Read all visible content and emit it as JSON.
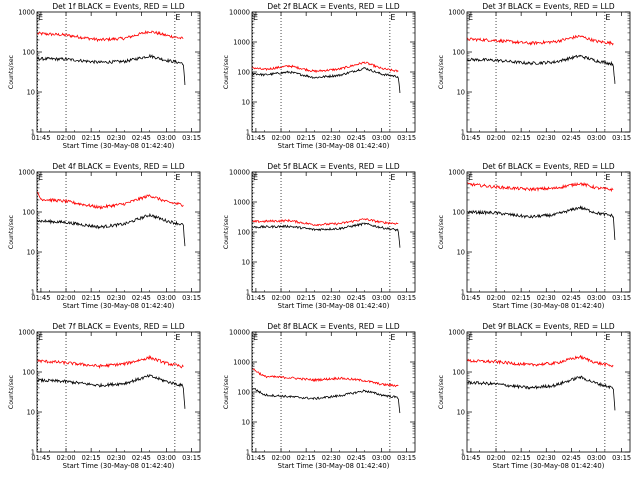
{
  "colors": {
    "events": "#000000",
    "lld": "#ff0000",
    "background": "#ffffff"
  },
  "chart_data": [
    {
      "type": "line",
      "title": "Det 1f BLACK = Events, RED = LLD",
      "xlabel": "Start Time (30-May-08 01:42:40)",
      "ylabel": "Counts/sec",
      "y_scale": "log",
      "ylim": [
        1,
        1000
      ],
      "xlim": [
        "01:42:40",
        "03:20:00"
      ],
      "x_ticks": [
        "01:45",
        "02:00",
        "02:15",
        "02:30",
        "02:45",
        "03:00",
        "03:15"
      ],
      "y_ticks": [
        "1",
        "10",
        "100",
        "1000"
      ],
      "vlines": [
        "01:43:00",
        "02:00:00",
        "03:05:00"
      ],
      "markers": [
        {
          "label": "E",
          "x": "01:43:00"
        },
        {
          "label": "E",
          "x": "03:05:00"
        }
      ],
      "series": [
        {
          "color": "#ff0000",
          "x": [
            "01:43",
            "02:00",
            "02:20",
            "02:35",
            "02:50",
            "03:00",
            "03:10"
          ],
          "values": [
            290,
            265,
            200,
            220,
            330,
            260,
            215
          ]
        },
        {
          "color": "#000000",
          "x": [
            "01:43",
            "02:00",
            "02:20",
            "02:35",
            "02:50",
            "03:00",
            "03:10",
            "03:11"
          ],
          "values": [
            68,
            66,
            55,
            58,
            80,
            62,
            52,
            15
          ]
        }
      ]
    },
    {
      "type": "line",
      "title": "Det 2f BLACK = Events, RED = LLD",
      "xlabel": "Start Time (30-May-08 01:42:40)",
      "ylabel": "Counts/sec",
      "y_scale": "log",
      "ylim": [
        1,
        10000
      ],
      "xlim": [
        "01:42:40",
        "03:20:00"
      ],
      "x_ticks": [
        "01:45",
        "02:00",
        "02:15",
        "02:30",
        "02:45",
        "03:00",
        "03:15"
      ],
      "y_ticks": [
        "1",
        "10",
        "100",
        "1000",
        "10000"
      ],
      "vlines": [
        "01:43:00",
        "02:00:00",
        "03:05:00"
      ],
      "markers": [
        {
          "label": "E",
          "x": "01:43:00"
        },
        {
          "label": "E",
          "x": "03:05:00"
        }
      ],
      "series": [
        {
          "color": "#ff0000",
          "x": [
            "01:43",
            "01:50",
            "02:05",
            "02:20",
            "02:35",
            "02:50",
            "03:00",
            "03:10"
          ],
          "values": [
            140,
            120,
            160,
            105,
            125,
            210,
            130,
            105
          ]
        },
        {
          "color": "#000000",
          "x": [
            "01:43",
            "01:50",
            "02:05",
            "02:20",
            "02:35",
            "02:50",
            "03:00",
            "03:10",
            "03:11"
          ],
          "values": [
            90,
            80,
            100,
            65,
            78,
            135,
            85,
            70,
            20
          ]
        }
      ]
    },
    {
      "type": "line",
      "title": "Det 3f BLACK = Events, RED = LLD",
      "xlabel": "",
      "ylabel": "Counts/sec",
      "y_scale": "log",
      "ylim": [
        1,
        1000
      ],
      "xlim": [
        "01:42:40",
        "03:20:00"
      ],
      "x_ticks": [
        "01:45",
        "02:00",
        "02:15",
        "02:30",
        "02:45",
        "03:00",
        "03:15"
      ],
      "y_ticks": [
        "1",
        "10",
        "100",
        "1000"
      ],
      "vlines": [
        "02:00:00",
        "03:05:00"
      ],
      "markers": [
        {
          "label": "E",
          "x": "01:43:00"
        },
        {
          "label": "E",
          "x": "03:05:00"
        }
      ],
      "series": [
        {
          "color": "#ff0000",
          "x": [
            "01:43",
            "02:00",
            "02:20",
            "02:35",
            "02:50",
            "03:00",
            "03:10"
          ],
          "values": [
            210,
            195,
            165,
            180,
            250,
            185,
            165
          ]
        },
        {
          "color": "#000000",
          "x": [
            "01:43",
            "02:00",
            "02:20",
            "02:35",
            "02:50",
            "03:00",
            "03:10",
            "03:11"
          ],
          "values": [
            65,
            62,
            52,
            56,
            80,
            60,
            50,
            16
          ]
        }
      ]
    },
    {
      "type": "line",
      "title": "Det 4f BLACK = Events, RED = LLD",
      "xlabel": "Start Time (30-May-08 01:42:40)",
      "ylabel": "Counts/sec",
      "y_scale": "log",
      "ylim": [
        1,
        1000
      ],
      "xlim": [
        "01:42:40",
        "03:20:00"
      ],
      "x_ticks": [
        "01:45",
        "02:00",
        "02:15",
        "02:30",
        "02:45",
        "03:00",
        "03:15"
      ],
      "y_ticks": [
        "1",
        "10",
        "100",
        "1000"
      ],
      "vlines": [
        "01:43:00",
        "02:00:00",
        "03:05:00"
      ],
      "markers": [
        {
          "label": "E",
          "x": "01:43:00"
        },
        {
          "label": "E",
          "x": "03:05:00"
        }
      ],
      "series": [
        {
          "color": "#ff0000",
          "x": [
            "01:43",
            "01:45",
            "02:00",
            "02:20",
            "02:35",
            "02:50",
            "03:00",
            "03:10"
          ],
          "values": [
            300,
            210,
            185,
            130,
            160,
            260,
            180,
            150
          ]
        },
        {
          "color": "#000000",
          "x": [
            "01:43",
            "02:00",
            "02:20",
            "02:35",
            "02:50",
            "03:00",
            "03:10",
            "03:11"
          ],
          "values": [
            60,
            55,
            42,
            50,
            85,
            60,
            48,
            14
          ]
        }
      ]
    },
    {
      "type": "line",
      "title": "Det 5f BLACK = Events, RED = LLD",
      "xlabel": "Start Time (30-May-08 01:42:40)",
      "ylabel": "Counts/sec",
      "y_scale": "log",
      "ylim": [
        1,
        10000
      ],
      "xlim": [
        "01:42:40",
        "03:20:00"
      ],
      "x_ticks": [
        "01:45",
        "02:00",
        "02:15",
        "02:30",
        "02:45",
        "03:00",
        "03:15"
      ],
      "y_ticks": [
        "1",
        "10",
        "100",
        "1000",
        "10000"
      ],
      "vlines": [
        "01:43:00",
        "02:00:00",
        "03:05:00"
      ],
      "markers": [
        {
          "label": "E",
          "x": "01:43:00"
        },
        {
          "label": "E",
          "x": "03:05:00"
        }
      ],
      "series": [
        {
          "color": "#ff0000",
          "x": [
            "01:43",
            "02:05",
            "02:20",
            "02:35",
            "02:50",
            "03:00",
            "03:10"
          ],
          "values": [
            220,
            240,
            175,
            190,
            270,
            210,
            190
          ]
        },
        {
          "color": "#000000",
          "x": [
            "01:43",
            "02:05",
            "02:20",
            "02:35",
            "02:50",
            "03:00",
            "03:10",
            "03:11"
          ],
          "values": [
            145,
            155,
            120,
            130,
            190,
            140,
            115,
            30
          ]
        }
      ]
    },
    {
      "type": "line",
      "title": "Det 6f BLACK = Events, RED = LLD",
      "xlabel": "Start Time (30-May-08 01:42:40)",
      "ylabel": "Counts/sec",
      "y_scale": "log",
      "ylim": [
        1,
        1000
      ],
      "xlim": [
        "01:42:40",
        "03:20:00"
      ],
      "x_ticks": [
        "01:45",
        "02:00",
        "02:15",
        "02:30",
        "02:45",
        "03:00",
        "03:15"
      ],
      "y_ticks": [
        "1",
        "10",
        "100",
        "1000"
      ],
      "vlines": [
        "02:00:00",
        "03:05:00"
      ],
      "markers": [
        {
          "label": "E",
          "x": "01:43:00"
        },
        {
          "label": "E",
          "x": "03:05:00"
        }
      ],
      "series": [
        {
          "color": "#ff0000",
          "x": [
            "01:43",
            "02:00",
            "02:20",
            "02:35",
            "02:50",
            "03:00",
            "03:10"
          ],
          "values": [
            500,
            420,
            370,
            390,
            520,
            400,
            360
          ]
        },
        {
          "color": "#000000",
          "x": [
            "01:43",
            "02:00",
            "02:20",
            "02:35",
            "02:50",
            "03:00",
            "03:10",
            "03:11"
          ],
          "values": [
            100,
            95,
            75,
            85,
            130,
            95,
            80,
            20
          ]
        }
      ]
    },
    {
      "type": "line",
      "title": "Det 7f BLACK = Events, RED = LLD",
      "xlabel": "Start Time (30-May-08 01:42:40)",
      "ylabel": "Counts/sec",
      "y_scale": "log",
      "ylim": [
        1,
        1000
      ],
      "xlim": [
        "01:42:40",
        "03:20:00"
      ],
      "x_ticks": [
        "01:45",
        "02:00",
        "02:15",
        "02:30",
        "02:45",
        "03:00",
        "03:15"
      ],
      "y_ticks": [
        "1",
        "10",
        "100",
        "1000"
      ],
      "vlines": [
        "01:43:00",
        "02:00:00",
        "03:05:00"
      ],
      "markers": [
        {
          "label": "E",
          "x": "01:43:00"
        },
        {
          "label": "E",
          "x": "03:05:00"
        }
      ],
      "series": [
        {
          "color": "#ff0000",
          "x": [
            "01:43",
            "02:00",
            "02:20",
            "02:35",
            "02:50",
            "03:00",
            "03:10"
          ],
          "values": [
            190,
            170,
            140,
            160,
            230,
            165,
            135
          ]
        },
        {
          "color": "#000000",
          "x": [
            "01:43",
            "02:00",
            "02:20",
            "02:35",
            "02:50",
            "03:00",
            "03:10",
            "03:11"
          ],
          "values": [
            62,
            58,
            46,
            52,
            80,
            58,
            45,
            12
          ]
        }
      ]
    },
    {
      "type": "line",
      "title": "Det 8f BLACK = Events, RED = LLD",
      "xlabel": "Start Time (30-May-08 01:42:40)",
      "ylabel": "Counts/sec",
      "y_scale": "log",
      "ylim": [
        1,
        10000
      ],
      "xlim": [
        "01:42:40",
        "03:20:00"
      ],
      "x_ticks": [
        "01:45",
        "02:00",
        "02:15",
        "02:30",
        "02:45",
        "03:00",
        "03:15"
      ],
      "y_ticks": [
        "1",
        "10",
        "100",
        "1000",
        "10000"
      ],
      "vlines": [
        "01:43:00",
        "02:00:00",
        "03:05:00"
      ],
      "markers": [
        {
          "label": "E",
          "x": "01:43:00"
        },
        {
          "label": "E",
          "x": "03:05:00"
        }
      ],
      "series": [
        {
          "color": "#ff0000",
          "x": [
            "01:43",
            "01:50",
            "02:05",
            "02:20",
            "02:35",
            "02:50",
            "03:00",
            "03:10"
          ],
          "values": [
            600,
            330,
            300,
            250,
            290,
            240,
            180,
            160
          ]
        },
        {
          "color": "#000000",
          "x": [
            "01:43",
            "01:50",
            "02:05",
            "02:20",
            "02:35",
            "02:50",
            "03:00",
            "03:10",
            "03:11"
          ],
          "values": [
            140,
            80,
            70,
            60,
            75,
            110,
            80,
            65,
            20
          ]
        }
      ]
    },
    {
      "type": "line",
      "title": "Det 9f BLACK = Events, RED = LLD",
      "xlabel": "Start Time (30-May-08 01:42:40)",
      "ylabel": "Counts/sec",
      "y_scale": "log",
      "ylim": [
        1,
        1000
      ],
      "xlim": [
        "01:42:40",
        "03:20:00"
      ],
      "x_ticks": [
        "01:45",
        "02:00",
        "02:15",
        "02:30",
        "02:45",
        "03:00",
        "03:15"
      ],
      "y_ticks": [
        "1",
        "10",
        "100",
        "1000"
      ],
      "vlines": [
        "02:00:00",
        "03:05:00"
      ],
      "markers": [
        {
          "label": "E",
          "x": "01:43:00"
        },
        {
          "label": "E",
          "x": "03:05:00"
        }
      ],
      "series": [
        {
          "color": "#ff0000",
          "x": [
            "01:43",
            "02:00",
            "02:20",
            "02:35",
            "02:50",
            "03:00",
            "03:10"
          ],
          "values": [
            190,
            180,
            150,
            165,
            240,
            170,
            140
          ]
        },
        {
          "color": "#000000",
          "x": [
            "01:43",
            "02:00",
            "02:20",
            "02:35",
            "02:50",
            "03:00",
            "03:10",
            "03:11"
          ],
          "values": [
            55,
            50,
            40,
            46,
            75,
            52,
            40,
            11
          ]
        }
      ]
    }
  ]
}
